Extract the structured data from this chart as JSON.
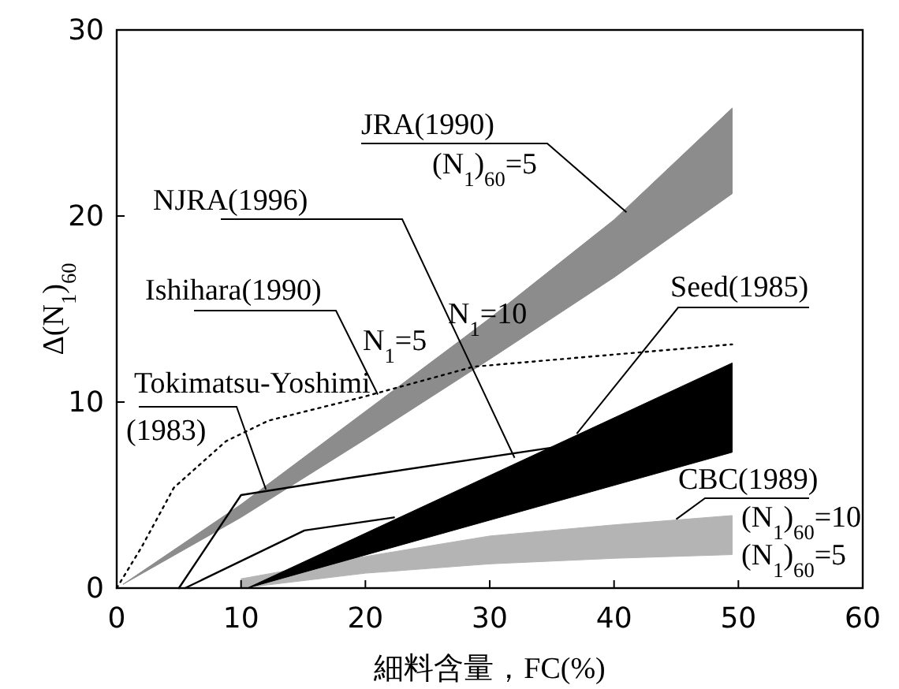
{
  "chart_data": {
    "type": "line",
    "xlabel": "細料含量，FC(%)",
    "ylabel": "Δ(N$_{1}$)$_{60}$",
    "xlim": [
      0,
      60
    ],
    "ylim": [
      0,
      30
    ],
    "xticks": [
      0,
      10,
      20,
      30,
      40,
      50,
      60
    ],
    "yticks": [
      0,
      10,
      20,
      30
    ],
    "grid": false,
    "series": [
      {
        "type": "area",
        "color": "#8c8c8c",
        "x": [
          0.5,
          10,
          20,
          30,
          40,
          49.5
        ],
        "values": [
          null,
          null,
          null,
          null,
          null,
          null
        ],
        "lower": [
          0.2,
          3.8,
          8,
          12.3,
          16.7,
          21.2
        ],
        "upper": [
          0.2,
          4.5,
          9.5,
          14.5,
          19.8,
          25.8
        ]
      },
      {
        "type": "area",
        "color": "#b4b4b4",
        "x": [
          10,
          20,
          30,
          40,
          49.5
        ],
        "values": [
          null,
          null,
          null,
          null,
          null
        ],
        "lower": [
          0,
          0.8,
          1.3,
          1.6,
          1.8
        ],
        "upper": [
          0.5,
          1.7,
          2.8,
          3.4,
          3.9
        ]
      },
      {
        "type": "area",
        "color": "#000000",
        "x": [
          10.5,
          49.5
        ],
        "values": [
          null,
          null
        ],
        "lower": [
          0,
          7.3
        ],
        "upper": [
          0,
          12.1
        ]
      },
      {
        "type": "line",
        "color": "#000000",
        "line_style": "solid",
        "x": [
          5,
          10,
          18.5,
          35.5
        ],
        "values": [
          0,
          5,
          5.9,
          7.6
        ]
      },
      {
        "type": "line",
        "color": "#000000",
        "line_style": "solid",
        "x": [
          5.5,
          15.1,
          22.3
        ],
        "values": [
          0,
          3.1,
          3.8
        ]
      },
      {
        "type": "line",
        "color": "#000000",
        "line_style": "dotted",
        "x": [
          0,
          2,
          4.6,
          8.8,
          12.2,
          19.4,
          28.7,
          49.5
        ],
        "values": [
          0,
          2.2,
          5.4,
          7.9,
          9.0,
          10.2,
          11.9,
          13.1
        ]
      }
    ],
    "annotations": [
      {
        "text": "JRA(1990)",
        "x": 41,
        "y": 20.2
      },
      "(N$_{1}$)$_{60}$=5",
      {
        "text": "NJRA(1996)",
        "x": 32,
        "y": 7.0
      },
      "N$_{1}$=10",
      {
        "text": "Ishihara(1990)",
        "x": 21,
        "y": 10.4
      },
      "N$_{1}$=5",
      {
        "text": "Tokimatsu-Yoshimi (1983)",
        "x": 12,
        "y": 5.3
      },
      {
        "text": "Seed(1985)",
        "x": 37,
        "y": 8.3
      },
      {
        "text": "CBC(1989)",
        "x": 45,
        "y": 3.7
      },
      "(N$_{1}$)$_{60}$=10",
      "(N$_{1}$)$_{60}$=5"
    ]
  }
}
